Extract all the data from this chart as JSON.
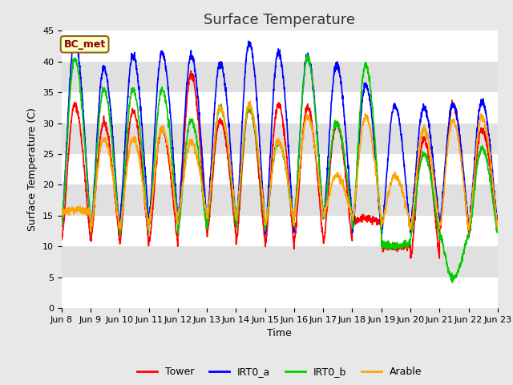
{
  "title": "Surface Temperature",
  "ylabel": "Surface Temperature (C)",
  "xlabel": "Time",
  "annotation": "BC_met",
  "ylim": [
    0,
    45
  ],
  "colors": {
    "Tower": "#ff0000",
    "IRT0_a": "#0000ff",
    "IRT0_b": "#00cc00",
    "Arable": "#ffa500"
  },
  "bg_color": "#e8e8e8",
  "plot_bg": "#ffffff",
  "title_fontsize": 13,
  "axis_fontsize": 9,
  "tick_fontsize": 8,
  "annotation_fontsize": 9,
  "line_width": 1.2,
  "tick_labels": [
    "Jun 8",
    "Jun 9",
    "Jun 10",
    "Jun 11",
    "Jun 12",
    "Jun 13",
    "Jun 14",
    "Jun 15",
    "Jun 16",
    "Jun 17",
    "Jun 18",
    "Jun 19",
    "Jun 20",
    "Jun 21",
    "Jun 22",
    "Jun 23"
  ],
  "day_peaks_blue": [
    43.5,
    39.0,
    41.0,
    41.5,
    41.0,
    39.8,
    43.0,
    41.5,
    40.8,
    39.5,
    36.2,
    33.0,
    32.5,
    33.0,
    33.5
  ],
  "day_peaks_red": [
    33.0,
    30.0,
    32.0,
    29.0,
    38.0,
    30.5,
    32.5,
    33.0,
    32.5,
    30.0,
    14.5,
    9.8,
    27.5,
    33.0,
    29.0
  ],
  "day_peaks_green": [
    40.5,
    35.5,
    35.5,
    35.5,
    30.5,
    32.5,
    32.5,
    27.0,
    40.5,
    30.0,
    39.5,
    10.0,
    25.0,
    4.8,
    26.0
  ],
  "day_peaks_orange": [
    16.0,
    27.5,
    27.5,
    29.0,
    27.0,
    32.5,
    33.0,
    27.0,
    31.0,
    21.5,
    31.0,
    21.5,
    29.0,
    30.5,
    31.0
  ],
  "night_mins_blue": [
    13.5,
    12.5,
    14.5,
    14.5,
    14.5,
    14.5,
    14.0,
    12.0,
    15.0,
    14.5,
    12.5,
    12.5,
    14.0,
    14.0,
    13.5
  ],
  "night_mins_red": [
    11.0,
    11.0,
    10.5,
    10.5,
    12.0,
    12.0,
    10.5,
    10.0,
    11.0,
    10.5,
    14.0,
    10.0,
    8.0,
    12.5,
    12.0
  ],
  "night_mins_green": [
    13.5,
    12.5,
    12.0,
    13.5,
    12.5,
    13.5,
    13.5,
    13.0,
    15.0,
    14.5,
    13.0,
    10.5,
    11.5,
    12.0,
    12.0
  ],
  "night_mins_orange": [
    15.5,
    13.0,
    13.0,
    14.0,
    15.0,
    14.5,
    14.5,
    13.5,
    15.0,
    15.0,
    14.5,
    13.5,
    13.0,
    13.0,
    13.0
  ]
}
